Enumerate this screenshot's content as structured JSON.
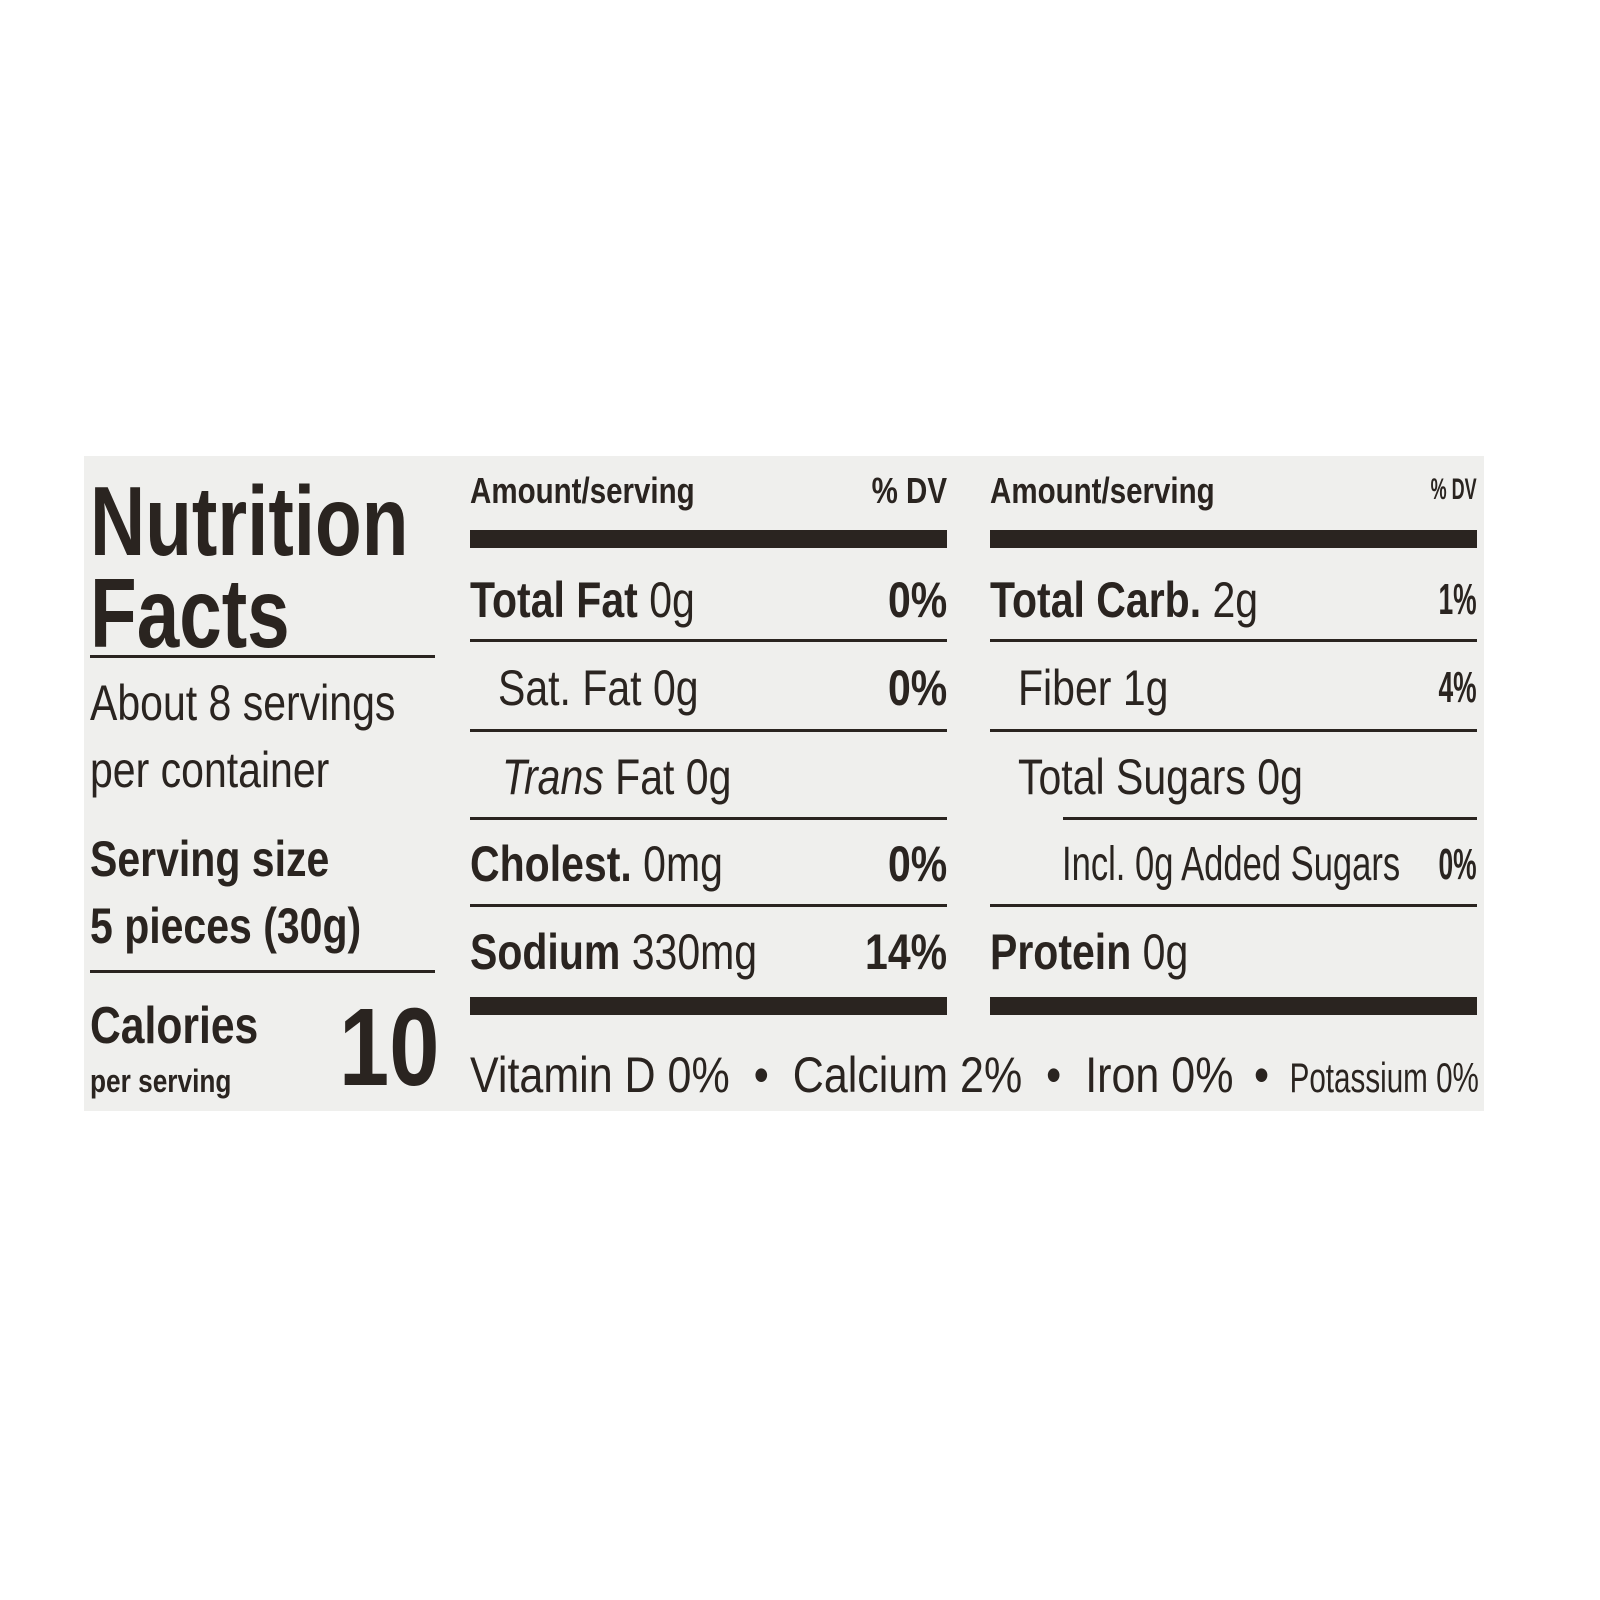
{
  "title": {
    "line1": "Nutrition",
    "line2": "Facts"
  },
  "servings": {
    "line1": "About 8 servings",
    "line2": "per container"
  },
  "serving_size": {
    "label": "Serving size",
    "value": "5 pieces (30g)"
  },
  "calories": {
    "label": "Calories",
    "sub": "per serving",
    "value": "10"
  },
  "left_table": {
    "header_amount": "Amount/serving",
    "header_dv": "% DV",
    "rows": [
      {
        "name": "Total Fat",
        "amount": "0g",
        "dv": "0%"
      },
      {
        "name": "Sat. Fat",
        "amount": "0g",
        "dv": "0%"
      },
      {
        "name": "Trans",
        "suffix": "Fat 0g",
        "dv": ""
      },
      {
        "name": "Cholest.",
        "amount": "0mg",
        "dv": "0%"
      },
      {
        "name": "Sodium",
        "amount": "330mg",
        "dv": "14%"
      }
    ]
  },
  "right_table": {
    "header_amount": "Amount/serving",
    "header_dv": "% DV",
    "rows": [
      {
        "name": "Total Carb.",
        "amount": "2g",
        "dv": "1%"
      },
      {
        "name": "Fiber",
        "amount": "1g",
        "dv": "4%"
      },
      {
        "name": "Total Sugars",
        "amount": "0g",
        "dv": ""
      },
      {
        "name": "Incl. 0g Added Sugars",
        "amount": "",
        "dv": "0%"
      },
      {
        "name": "Protein",
        "amount": "0g",
        "dv": ""
      }
    ]
  },
  "footer": {
    "vitamin_d": "Vitamin D 0%",
    "calcium": "Calcium 2%",
    "iron": "Iron 0%",
    "potassium": "Potassium 0%",
    "separator": "•"
  },
  "colors": {
    "ink": "#2a2420",
    "label_background": "#efefed"
  }
}
